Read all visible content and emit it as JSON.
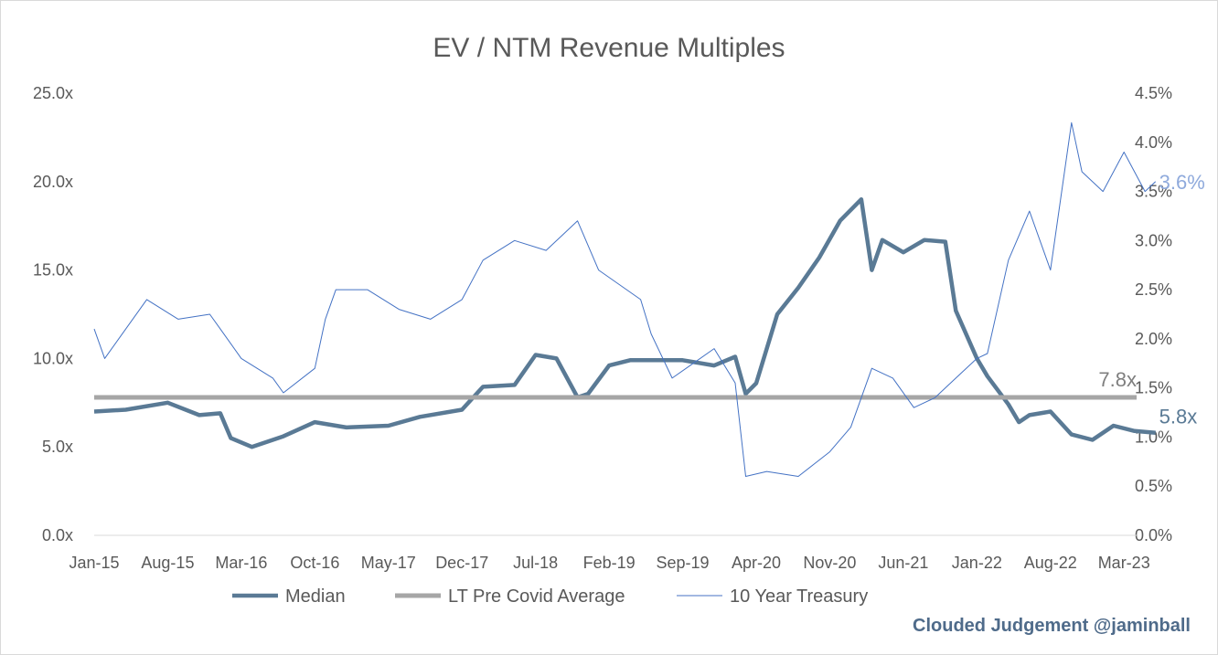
{
  "chart_data": {
    "type": "line",
    "title": "EV / NTM Revenue Multiples",
    "x_tick_labels": [
      "Jan-15",
      "Aug-15",
      "Mar-16",
      "Oct-16",
      "May-17",
      "Dec-17",
      "Jul-18",
      "Feb-19",
      "Sep-19",
      "Apr-20",
      "Nov-20",
      "Jun-21",
      "Jan-22",
      "Aug-22",
      "Mar-23"
    ],
    "y_left": {
      "ylim": [
        0,
        25
      ],
      "tick_values": [
        0,
        5,
        10,
        15,
        20,
        25
      ],
      "tick_labels": [
        "0.0x",
        "5.0x",
        "10.0x",
        "15.0x",
        "20.0x",
        "25.0x"
      ]
    },
    "y_right": {
      "ylim": [
        0,
        4.5
      ],
      "tick_values": [
        0,
        0.5,
        1,
        1.5,
        2,
        2.5,
        3,
        3.5,
        4,
        4.5
      ],
      "tick_labels": [
        "0.0%",
        "0.5%",
        "1.0%",
        "1.5%",
        "2.0%",
        "2.5%",
        "3.0%",
        "3.5%",
        "4.0%",
        "4.5%"
      ]
    },
    "grid": false,
    "legend_position": "bottom",
    "series": [
      {
        "name": "Median",
        "axis": "left",
        "color": "#5a7a95",
        "x": [
          "2015-01",
          "2015-04",
          "2015-08",
          "2015-11",
          "2016-01",
          "2016-02",
          "2016-04",
          "2016-07",
          "2016-10",
          "2017-01",
          "2017-05",
          "2017-08",
          "2017-12",
          "2018-02",
          "2018-05",
          "2018-07",
          "2018-09",
          "2018-11",
          "2018-12",
          "2019-02",
          "2019-04",
          "2019-06",
          "2019-09",
          "2019-12",
          "2020-02",
          "2020-03",
          "2020-04",
          "2020-06",
          "2020-08",
          "2020-10",
          "2020-12",
          "2021-02",
          "2021-03",
          "2021-04",
          "2021-06",
          "2021-08",
          "2021-10",
          "2021-11",
          "2022-01",
          "2022-02",
          "2022-04",
          "2022-05",
          "2022-06",
          "2022-08",
          "2022-10",
          "2022-12",
          "2023-02",
          "2023-04",
          "2023-06"
        ],
        "values": [
          7.0,
          7.1,
          7.5,
          6.8,
          6.9,
          5.5,
          5.0,
          5.6,
          6.4,
          6.1,
          6.2,
          6.7,
          7.1,
          8.4,
          8.5,
          10.2,
          10.0,
          7.8,
          8.0,
          9.6,
          9.9,
          9.9,
          9.9,
          9.6,
          10.1,
          8.0,
          8.6,
          12.5,
          14.0,
          15.7,
          17.8,
          19.0,
          15.0,
          16.7,
          16.0,
          16.7,
          16.6,
          12.7,
          10.0,
          9.0,
          7.4,
          6.4,
          6.8,
          7.0,
          5.7,
          5.4,
          6.2,
          5.9,
          5.8
        ]
      },
      {
        "name": "LT Pre Covid Average",
        "axis": "left",
        "color": "#a6a6a6",
        "x": [
          "2015-01",
          "2023-06"
        ],
        "values": [
          7.8,
          7.8
        ]
      },
      {
        "name": "10 Year Treasury",
        "axis": "right",
        "color": "#4472c4",
        "x": [
          "2015-01",
          "2015-02",
          "2015-06",
          "2015-09",
          "2015-12",
          "2016-01",
          "2016-03",
          "2016-06",
          "2016-07",
          "2016-10",
          "2016-11",
          "2016-12",
          "2017-03",
          "2017-06",
          "2017-09",
          "2017-12",
          "2018-02",
          "2018-05",
          "2018-08",
          "2018-11",
          "2019-01",
          "2019-05",
          "2019-06",
          "2019-08",
          "2019-10",
          "2019-12",
          "2020-02",
          "2020-03",
          "2020-05",
          "2020-08",
          "2020-11",
          "2021-01",
          "2021-02",
          "2021-03",
          "2021-05",
          "2021-07",
          "2021-09",
          "2021-11",
          "2022-01",
          "2022-02",
          "2022-04",
          "2022-06",
          "2022-08",
          "2022-10",
          "2022-11",
          "2023-01",
          "2023-03",
          "2023-05",
          "2023-06"
        ],
        "values": [
          2.1,
          1.8,
          2.4,
          2.2,
          2.25,
          2.1,
          1.8,
          1.6,
          1.45,
          1.7,
          2.2,
          2.5,
          2.5,
          2.3,
          2.2,
          2.4,
          2.8,
          3.0,
          2.9,
          3.2,
          2.7,
          2.4,
          2.05,
          1.6,
          1.75,
          1.9,
          1.55,
          0.6,
          0.65,
          0.6,
          0.85,
          1.1,
          1.4,
          1.7,
          1.6,
          1.3,
          1.4,
          1.6,
          1.8,
          1.85,
          2.8,
          3.3,
          2.7,
          4.2,
          3.7,
          3.5,
          3.9,
          3.5,
          3.6
        ]
      }
    ],
    "annotations": {
      "average_label": "7.8x",
      "median_end_label": "5.8x",
      "treasury_end_label": "3.6%"
    }
  },
  "credit": "Clouded Judgement @jaminball"
}
